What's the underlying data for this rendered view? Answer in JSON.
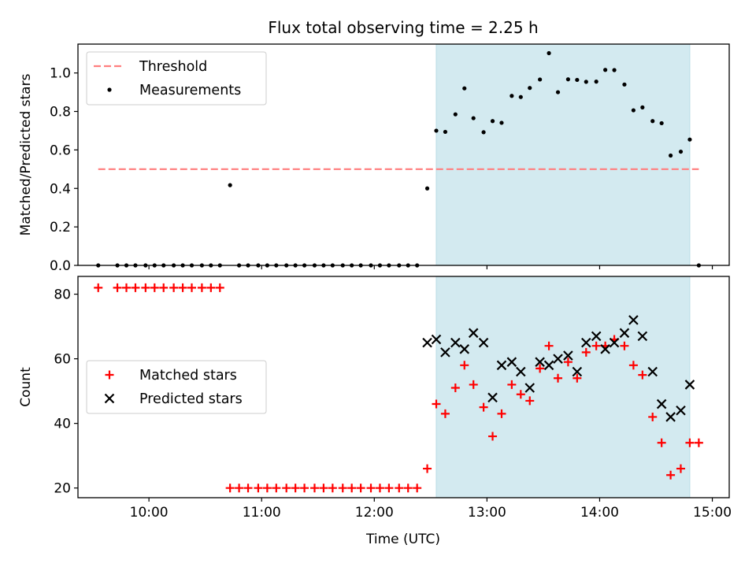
{
  "chart_data": {
    "type": "scatter",
    "title": "Flux total observing time = 2.25 h",
    "xlabel": "Time (UTC)",
    "x_tick_labels": [
      "10:00",
      "11:00",
      "12:00",
      "13:00",
      "14:00",
      "15:00"
    ],
    "x_ticks_hours": [
      10,
      11,
      12,
      13,
      14,
      15
    ],
    "xlim_hours": [
      9.37,
      15.15
    ],
    "shaded_span_hours": [
      12.55,
      14.8
    ],
    "shaded_color": "#d3eaf0",
    "panels": [
      {
        "ylabel": "Matched/Predicted stars",
        "ylim": [
          0,
          1.15
        ],
        "y_ticks": [
          0.0,
          0.2,
          0.4,
          0.6,
          0.8,
          1.0
        ],
        "y_tick_labels": [
          "0.0",
          "0.2",
          "0.4",
          "0.6",
          "0.8",
          "1.0"
        ],
        "threshold": {
          "name": "Threshold",
          "value": 0.5,
          "x_range_hours": [
            9.55,
            14.88
          ],
          "color": "#ff7f7f"
        },
        "series": [
          {
            "name": "Measurements",
            "marker": "dot",
            "color": "#000000",
            "x": [
              9.55,
              9.72,
              9.8,
              9.88,
              9.97,
              10.05,
              10.13,
              10.22,
              10.3,
              10.38,
              10.47,
              10.55,
              10.63,
              10.72,
              10.8,
              10.88,
              10.97,
              11.05,
              11.13,
              11.22,
              11.3,
              11.38,
              11.47,
              11.55,
              11.63,
              11.72,
              11.8,
              11.88,
              11.97,
              12.05,
              12.13,
              12.22,
              12.3,
              12.38,
              12.47,
              12.55,
              12.63,
              12.72,
              12.8,
              12.88,
              12.97,
              13.05,
              13.13,
              13.22,
              13.3,
              13.38,
              13.47,
              13.55,
              13.63,
              13.72,
              13.8,
              13.88,
              13.97,
              14.05,
              14.13,
              14.22,
              14.3,
              14.38,
              14.47,
              14.55,
              14.63,
              14.72,
              14.8,
              14.88
            ],
            "y": [
              0.0,
              0.0,
              0.0,
              0.0,
              0.0,
              0.0,
              0.0,
              0.0,
              0.0,
              0.0,
              0.0,
              0.0,
              0.0,
              0.417,
              0.0,
              0.0,
              0.0,
              0.0,
              0.0,
              0.0,
              0.0,
              0.0,
              0.0,
              0.0,
              0.0,
              0.0,
              0.0,
              0.0,
              0.0,
              0.0,
              0.0,
              0.0,
              0.0,
              0.0,
              0.4,
              0.7,
              0.694,
              0.785,
              0.92,
              0.765,
              0.692,
              0.75,
              0.741,
              0.881,
              0.875,
              0.922,
              0.966,
              1.103,
              0.9,
              0.967,
              0.964,
              0.954,
              0.955,
              1.016,
              1.015,
              0.94,
              0.806,
              0.821,
              0.75,
              0.739,
              0.571,
              0.591,
              0.654,
              0.0
            ]
          }
        ]
      },
      {
        "ylabel": "Count",
        "ylim": [
          17,
          85.5
        ],
        "y_ticks": [
          20,
          40,
          60,
          80
        ],
        "y_tick_labels": [
          "20",
          "40",
          "60",
          "80"
        ],
        "series": [
          {
            "name": "Matched stars",
            "marker": "plus",
            "color": "#ff0000",
            "x": [
              9.55,
              9.72,
              9.8,
              9.88,
              9.97,
              10.05,
              10.13,
              10.22,
              10.3,
              10.38,
              10.47,
              10.55,
              10.63,
              10.72,
              10.8,
              10.88,
              10.97,
              11.05,
              11.13,
              11.22,
              11.3,
              11.38,
              11.47,
              11.55,
              11.63,
              11.72,
              11.8,
              11.88,
              11.97,
              12.05,
              12.13,
              12.22,
              12.3,
              12.38,
              12.47,
              12.55,
              12.63,
              12.72,
              12.8,
              12.88,
              12.97,
              13.05,
              13.13,
              13.22,
              13.3,
              13.38,
              13.47,
              13.55,
              13.63,
              13.72,
              13.8,
              13.88,
              13.97,
              14.05,
              14.13,
              14.22,
              14.3,
              14.38,
              14.47,
              14.55,
              14.63,
              14.72,
              14.8,
              14.88
            ],
            "y": [
              82,
              82,
              82,
              82,
              82,
              82,
              82,
              82,
              82,
              82,
              82,
              82,
              82,
              20,
              20,
              20,
              20,
              20,
              20,
              20,
              20,
              20,
              20,
              20,
              20,
              20,
              20,
              20,
              20,
              20,
              20,
              20,
              20,
              20,
              26,
              46,
              43,
              51,
              58,
              52,
              45,
              36,
              43,
              52,
              49,
              47,
              57,
              64,
              54,
              59,
              54,
              62,
              64,
              64,
              66,
              64,
              58,
              55,
              42,
              34,
              24,
              26,
              34,
              34
            ]
          },
          {
            "name": "Predicted stars",
            "marker": "x",
            "color": "#000000",
            "x": [
              12.47,
              12.55,
              12.63,
              12.72,
              12.8,
              12.88,
              12.97,
              13.05,
              13.13,
              13.22,
              13.3,
              13.38,
              13.47,
              13.55,
              13.63,
              13.72,
              13.8,
              13.88,
              13.97,
              14.05,
              14.13,
              14.22,
              14.3,
              14.38,
              14.47,
              14.55,
              14.63,
              14.72,
              14.8
            ],
            "y": [
              65,
              66,
              62,
              65,
              63,
              68,
              65,
              48,
              58,
              59,
              56,
              51,
              59,
              58,
              60,
              61,
              56,
              65,
              67,
              63,
              65,
              68,
              72,
              67,
              56,
              46,
              42,
              44,
              52
            ]
          }
        ]
      }
    ]
  }
}
